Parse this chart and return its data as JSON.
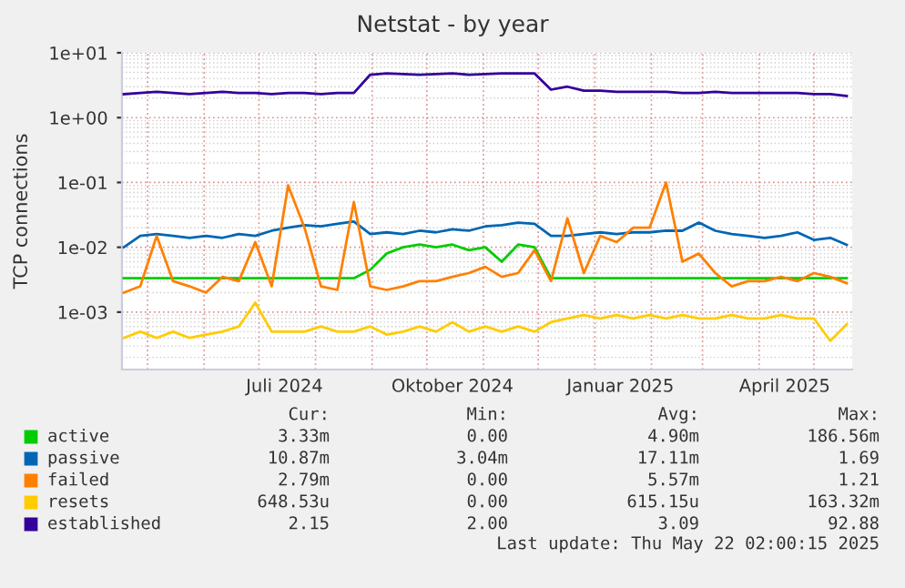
{
  "chart_data": {
    "type": "line",
    "title": "Netstat - by year",
    "ylabel": "TCP connections",
    "x": [
      "2024-04-18",
      "2024-04-27",
      "2024-05-06",
      "2024-05-15",
      "2024-05-24",
      "2024-06-02",
      "2024-06-11",
      "2024-06-20",
      "2024-06-29",
      "2024-07-08",
      "2024-07-17",
      "2024-07-26",
      "2024-08-04",
      "2024-08-13",
      "2024-08-22",
      "2024-08-31",
      "2024-09-09",
      "2024-09-18",
      "2024-09-27",
      "2024-10-06",
      "2024-10-15",
      "2024-10-24",
      "2024-11-02",
      "2024-11-11",
      "2024-11-20",
      "2024-11-29",
      "2024-12-08",
      "2024-12-17",
      "2024-12-26",
      "2025-01-04",
      "2025-01-13",
      "2025-01-22",
      "2025-01-31",
      "2025-02-09",
      "2025-02-18",
      "2025-02-27",
      "2025-03-08",
      "2025-03-17",
      "2025-03-26",
      "2025-04-04",
      "2025-04-13",
      "2025-04-22",
      "2025-05-01",
      "2025-05-10",
      "2025-05-19"
    ],
    "series": [
      {
        "name": "active",
        "color": "#00cc00",
        "values": [
          0.00333,
          0.00333,
          0.00333,
          0.00333,
          0.00333,
          0.00333,
          0.00333,
          0.00333,
          0.00333,
          0.00333,
          0.00333,
          0.00333,
          0.00333,
          0.00333,
          0.00333,
          0.0045,
          0.008,
          0.01,
          0.011,
          0.01,
          0.011,
          0.009,
          0.01,
          0.006,
          0.011,
          0.01,
          0.00333,
          0.00333,
          0.00333,
          0.00333,
          0.00333,
          0.00333,
          0.00333,
          0.00333,
          0.00333,
          0.00333,
          0.00333,
          0.00333,
          0.00333,
          0.00333,
          0.00333,
          0.00333,
          0.00333,
          0.00333,
          0.00333
        ]
      },
      {
        "name": "passive",
        "color": "#0066b3",
        "values": [
          0.01,
          0.015,
          0.016,
          0.015,
          0.014,
          0.015,
          0.014,
          0.016,
          0.015,
          0.018,
          0.02,
          0.022,
          0.021,
          0.023,
          0.025,
          0.016,
          0.017,
          0.016,
          0.018,
          0.017,
          0.019,
          0.018,
          0.021,
          0.022,
          0.024,
          0.023,
          0.015,
          0.015,
          0.016,
          0.017,
          0.016,
          0.017,
          0.017,
          0.018,
          0.018,
          0.024,
          0.018,
          0.016,
          0.015,
          0.014,
          0.015,
          0.017,
          0.013,
          0.014,
          0.0109
        ]
      },
      {
        "name": "failed",
        "color": "#ff8000",
        "values": [
          0.002,
          0.0025,
          0.015,
          0.003,
          0.0025,
          0.002,
          0.0035,
          0.003,
          0.012,
          0.0025,
          0.09,
          0.02,
          0.0025,
          0.0022,
          0.05,
          0.0025,
          0.0022,
          0.0025,
          0.003,
          0.003,
          0.0035,
          0.004,
          0.005,
          0.0035,
          0.004,
          0.009,
          0.003,
          0.028,
          0.004,
          0.015,
          0.012,
          0.02,
          0.02,
          0.1,
          0.006,
          0.008,
          0.004,
          0.0025,
          0.003,
          0.003,
          0.0035,
          0.003,
          0.004,
          0.0035,
          0.00279
        ]
      },
      {
        "name": "resets",
        "color": "#ffcc00",
        "values": [
          0.0004,
          0.0005,
          0.0004,
          0.0005,
          0.0004,
          0.00045,
          0.0005,
          0.0006,
          0.0014,
          0.0005,
          0.0005,
          0.0005,
          0.0006,
          0.0005,
          0.0005,
          0.0006,
          0.00045,
          0.0005,
          0.0006,
          0.0005,
          0.0007,
          0.0005,
          0.0006,
          0.0005,
          0.0006,
          0.0005,
          0.0007,
          0.0008,
          0.0009,
          0.0008,
          0.0009,
          0.0008,
          0.0009,
          0.0008,
          0.0009,
          0.0008,
          0.0008,
          0.0009,
          0.0008,
          0.0008,
          0.0009,
          0.0008,
          0.0008,
          0.00036,
          0.00065
        ]
      },
      {
        "name": "established",
        "color": "#330099",
        "values": [
          2.3,
          2.4,
          2.5,
          2.4,
          2.3,
          2.4,
          2.5,
          2.4,
          2.4,
          2.3,
          2.4,
          2.4,
          2.3,
          2.4,
          2.4,
          4.6,
          4.8,
          4.7,
          4.6,
          4.7,
          4.8,
          4.6,
          4.7,
          4.8,
          4.8,
          4.8,
          2.7,
          3.0,
          2.6,
          2.6,
          2.5,
          2.5,
          2.5,
          2.5,
          2.4,
          2.4,
          2.5,
          2.4,
          2.4,
          2.4,
          2.4,
          2.4,
          2.3,
          2.3,
          2.15
        ]
      }
    ],
    "xlim": [
      "2024-04-17",
      "2025-05-22"
    ],
    "xticks": [
      {
        "value": "2024-05-01",
        "label": null
      },
      {
        "value": "2024-06-01",
        "label": null
      },
      {
        "value": "2024-07-01",
        "label": null
      },
      {
        "value": "2024-07-15",
        "label": "Juli 2024"
      },
      {
        "value": "2024-08-01",
        "label": null
      },
      {
        "value": "2024-09-01",
        "label": null
      },
      {
        "value": "2024-10-01",
        "label": null
      },
      {
        "value": "2024-10-15",
        "label": "Oktober 2024"
      },
      {
        "value": "2024-11-01",
        "label": null
      },
      {
        "value": "2024-12-01",
        "label": null
      },
      {
        "value": "2025-01-01",
        "label": null
      },
      {
        "value": "2025-01-15",
        "label": "Januar 2025"
      },
      {
        "value": "2025-02-01",
        "label": null
      },
      {
        "value": "2025-03-01",
        "label": null
      },
      {
        "value": "2025-04-01",
        "label": null
      },
      {
        "value": "2025-04-15",
        "label": "April 2025"
      },
      {
        "value": "2025-05-01",
        "label": null
      }
    ],
    "ylim": [
      0.00013,
      10
    ],
    "yticks": [
      {
        "value": 0.001,
        "label": "1e-03"
      },
      {
        "value": 0.01,
        "label": "1e-02"
      },
      {
        "value": 0.1,
        "label": "1e-01"
      },
      {
        "value": 1,
        "label": "1e+00"
      },
      {
        "value": 10,
        "label": "1e+01"
      }
    ],
    "log": true,
    "grid": true,
    "legend": "bottom",
    "marker": "none",
    "line_style": "solid",
    "annotations": [
      "Cur:",
      "Min:",
      "Avg:",
      "Max:",
      "3.33m",
      "0.00",
      "4.90m",
      "186.56m",
      "10.87m",
      "3.04m",
      "17.11m",
      "1.69",
      "2.79m",
      "0.00",
      "5.57m",
      "1.21",
      "648.53u",
      "0.00",
      "615.15u",
      "163.32m",
      "2.15",
      "2.00",
      "3.09",
      "92.88",
      "Last update: Thu May 22 02:00:15 2025"
    ]
  }
}
